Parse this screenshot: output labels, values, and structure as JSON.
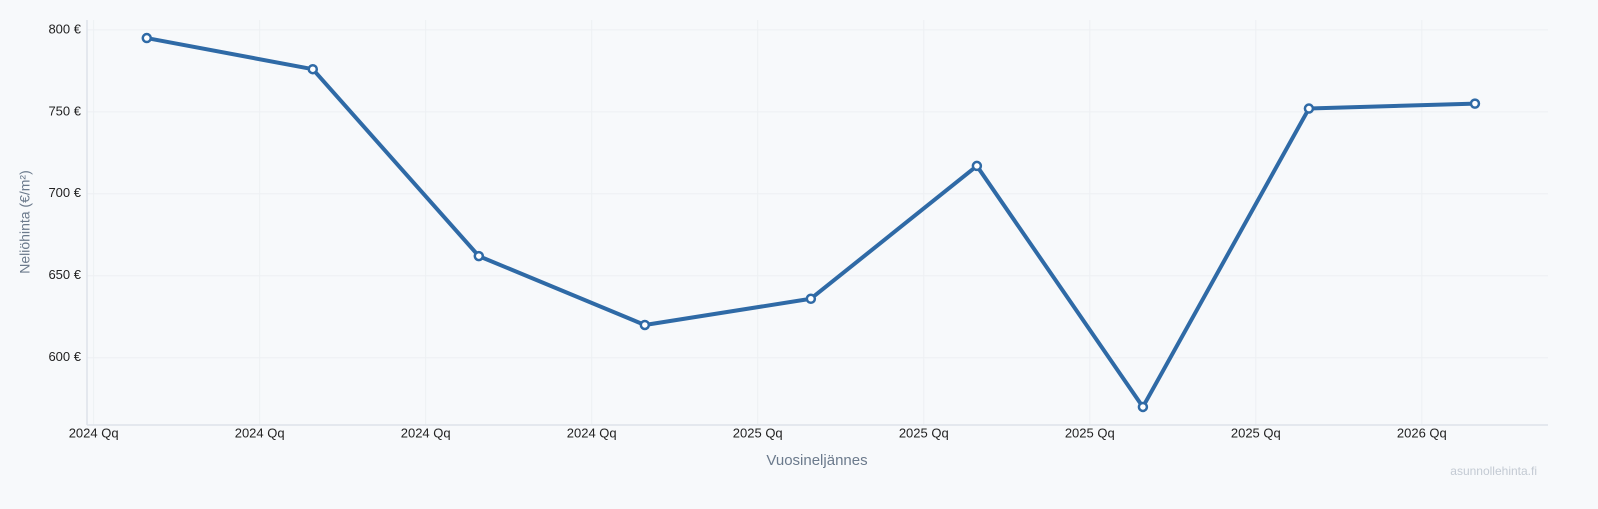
{
  "chart_data": {
    "type": "line",
    "y_label": "Neliöhinta (€/m²)",
    "x_label": "Vuosineljännes",
    "watermark": "asunnollehinta.fi",
    "x": [
      2024.08,
      2024.33,
      2024.58,
      2024.83,
      2025.08,
      2025.33,
      2025.58,
      2025.83,
      2026.08
    ],
    "series": [
      {
        "color": "#2f6aa6",
        "values": [
          795,
          776,
          662,
          620,
          636,
          717,
          570,
          752,
          755
        ]
      }
    ],
    "xlim": [
      2023.99,
      2026.19
    ],
    "xticks": [
      {
        "value": 2024.0,
        "label": "2024 Qq"
      },
      {
        "value": 2024.25,
        "label": "2024 Qq"
      },
      {
        "value": 2024.5,
        "label": "2024 Qq"
      },
      {
        "value": 2024.75,
        "label": "2024 Qq"
      },
      {
        "value": 2025.0,
        "label": "2025 Qq"
      },
      {
        "value": 2025.25,
        "label": "2025 Qq"
      },
      {
        "value": 2025.5,
        "label": "2025 Qq"
      },
      {
        "value": 2025.75,
        "label": "2025 Qq"
      },
      {
        "value": 2026.0,
        "label": "2026 Qq"
      }
    ],
    "ylim": [
      559,
      806
    ],
    "yticks": [
      {
        "value": 600,
        "label": "600 €"
      },
      {
        "value": 650,
        "label": "650 €"
      },
      {
        "value": 700,
        "label": "700 €"
      },
      {
        "value": 750,
        "label": "750 €"
      },
      {
        "value": 800,
        "label": "800 €"
      }
    ],
    "grid": true
  }
}
